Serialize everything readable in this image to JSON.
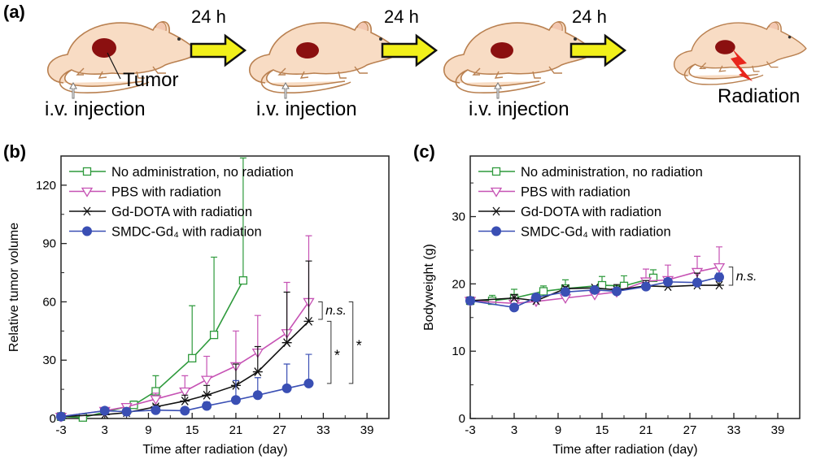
{
  "panel_a": {
    "label": "(a)",
    "interval_label": "24 h",
    "injection_label": "i.v. injection",
    "tumor_label": "Tumor",
    "radiation_label": "Radiation",
    "colors": {
      "mouse_body": "#f8dcc4",
      "mouse_outline": "#b98050",
      "tumor": "#8b1010",
      "arrow": "#f2f01a",
      "radiation": "#e8261c"
    }
  },
  "chart_data": [
    {
      "panel_label": "(b)",
      "type": "line",
      "xlabel": "Time after radiation (day)",
      "ylabel": "Relative tumor volume",
      "xlim": [
        -3,
        42
      ],
      "ylim": [
        0,
        135
      ],
      "xticks": [
        -3,
        3,
        9,
        15,
        21,
        27,
        33,
        39
      ],
      "yticks": [
        0,
        30,
        60,
        90,
        120
      ],
      "grid": false,
      "legend_position": "top-left",
      "series": [
        {
          "name": "No administration, no radiation",
          "color": "#2e9a3c",
          "marker": "open-square",
          "x": [
            -3,
            0,
            7,
            10,
            15,
            18,
            22
          ],
          "y": [
            1,
            0.5,
            7,
            14,
            31,
            43,
            71
          ],
          "err": [
            0,
            0,
            2,
            8,
            27,
            40,
            63
          ]
        },
        {
          "name": "PBS with radiation",
          "color": "#c652b4",
          "marker": "open-triangle-down",
          "x": [
            -3,
            3,
            6,
            10,
            14,
            17,
            21,
            24,
            28,
            31
          ],
          "y": [
            1,
            4,
            6,
            10,
            14,
            20,
            27,
            34,
            44,
            60
          ],
          "err": [
            0,
            0,
            1,
            3,
            8,
            12,
            18,
            19,
            26,
            34
          ]
        },
        {
          "name": "Gd-DOTA with radiation",
          "color": "#111111",
          "marker": "asterisk",
          "x": [
            -3,
            3,
            6,
            10,
            14,
            17,
            21,
            24,
            28,
            31
          ],
          "y": [
            1,
            2,
            3,
            6,
            9,
            12,
            17,
            24,
            39,
            50
          ],
          "err": [
            0,
            0,
            0,
            1,
            3,
            5,
            11,
            13,
            26,
            31
          ]
        },
        {
          "name": "SMDC-Gd₄ with radiation",
          "color": "#3a4fb4",
          "marker": "filled-circle",
          "x": [
            -3,
            3,
            6,
            10,
            14,
            17,
            21,
            24,
            28,
            31
          ],
          "y": [
            1,
            4,
            3.5,
            4.3,
            4,
            6.5,
            9.5,
            12,
            15.5,
            18
          ],
          "err": [
            0,
            0,
            0,
            0,
            0,
            2,
            10,
            9,
            12.5,
            15
          ]
        }
      ],
      "annotations": [
        {
          "text": "n.s.",
          "italic": true,
          "x": 32.3,
          "y1": 60,
          "y2": 51
        },
        {
          "text": "*",
          "italic": false,
          "x": 33.5,
          "y1": 50,
          "y2": 18
        },
        {
          "text": "*",
          "italic": false,
          "x": 36.5,
          "y1": 60,
          "y2": 18
        }
      ]
    },
    {
      "panel_label": "(c)",
      "type": "line",
      "xlabel": "Time after radiation (day)",
      "ylabel": "Bodyweight (g)",
      "xlim": [
        -3,
        42
      ],
      "ylim": [
        0,
        39
      ],
      "xticks": [
        -3,
        3,
        9,
        15,
        21,
        27,
        33,
        39
      ],
      "yticks": [
        0,
        10,
        20,
        30
      ],
      "grid": false,
      "legend_position": "top-left",
      "series": [
        {
          "name": "No administration, no radiation",
          "color": "#2e9a3c",
          "marker": "open-square",
          "x": [
            -3,
            0,
            3,
            7,
            10,
            15,
            18,
            22
          ],
          "y": [
            17.5,
            17.5,
            17.9,
            18.9,
            19.3,
            19.8,
            19.7,
            20.9
          ],
          "err": [
            0,
            0.8,
            1.3,
            0.8,
            1.3,
            1.3,
            1.5,
            1.2
          ]
        },
        {
          "name": "PBS with radiation",
          "color": "#c652b4",
          "marker": "open-triangle-down",
          "x": [
            -3,
            3,
            6,
            10,
            14,
            17,
            21,
            24,
            28,
            31
          ],
          "y": [
            17.5,
            17.1,
            17.4,
            17.9,
            18.4,
            18.8,
            20.4,
            20.6,
            21.8,
            22.5
          ],
          "err": [
            0,
            0,
            0,
            0,
            0,
            0,
            1.8,
            2.2,
            2.3,
            3
          ]
        },
        {
          "name": "Gd-DOTA with radiation",
          "color": "#111111",
          "marker": "asterisk",
          "x": [
            -3,
            3,
            6,
            10,
            14,
            17,
            21,
            24,
            28,
            31
          ],
          "y": [
            17.5,
            17.9,
            17.5,
            19.3,
            19.4,
            19.1,
            19.7,
            19.6,
            19.8,
            19.8
          ],
          "err": [
            0,
            0.5,
            0,
            0.3,
            0,
            0.8,
            0.8,
            0,
            1.8,
            1.5
          ]
        },
        {
          "name": "SMDC-Gd₄ with radiation",
          "color": "#3a4fb4",
          "marker": "filled-circle",
          "x": [
            -3,
            3,
            6,
            10,
            14,
            17,
            21,
            24,
            28,
            31
          ],
          "y": [
            17.5,
            16.5,
            18,
            18.8,
            19.1,
            18.9,
            19.6,
            20.3,
            20.2,
            21
          ],
          "err": [
            0,
            0,
            0,
            0,
            0,
            0,
            0,
            0,
            0,
            0.6
          ]
        }
      ],
      "annotations": [
        {
          "text": "n.s.",
          "italic": true,
          "x": 32.3,
          "y1": 22.5,
          "y2": 19.8
        }
      ]
    }
  ]
}
